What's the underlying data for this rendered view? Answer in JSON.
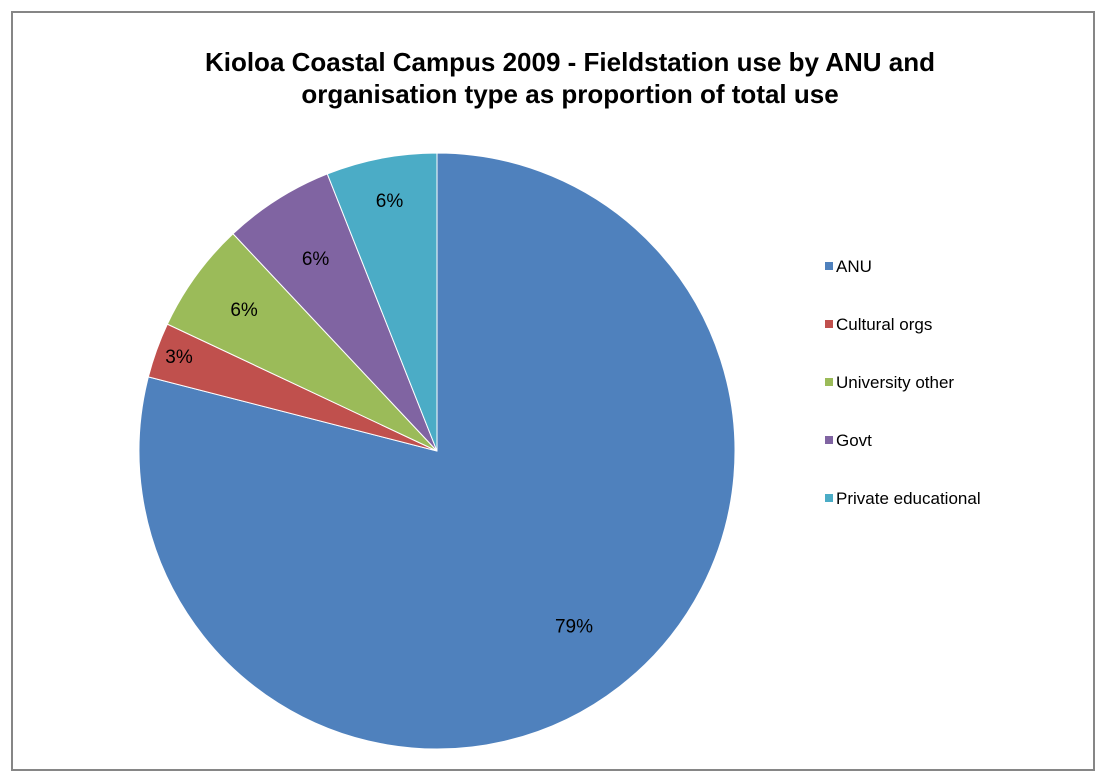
{
  "chart_data": {
    "type": "pie",
    "title": "Kioloa Coastal Campus 2009 - Fieldstation use by ANU and organisation type as proportion of total use",
    "title_lines": [
      "Kioloa Coastal Campus 2009 - Fieldstation use by ANU and",
      "organisation type as proportion of total use"
    ],
    "legend_position": "right",
    "start_angle_deg": 0,
    "direction": "clockwise",
    "slices": [
      {
        "name": "ANU",
        "value": 79,
        "label": "79%",
        "color": "#4f81bd"
      },
      {
        "name": "Cultural orgs",
        "value": 3,
        "label": "3%",
        "color": "#c0504d"
      },
      {
        "name": "University other",
        "value": 6,
        "label": "6%",
        "color": "#9bbb59"
      },
      {
        "name": "Govt",
        "value": 6,
        "label": "6%",
        "color": "#8064a2"
      },
      {
        "name": "Private educational",
        "value": 6,
        "label": "6%",
        "color": "#4bacc6"
      }
    ]
  }
}
